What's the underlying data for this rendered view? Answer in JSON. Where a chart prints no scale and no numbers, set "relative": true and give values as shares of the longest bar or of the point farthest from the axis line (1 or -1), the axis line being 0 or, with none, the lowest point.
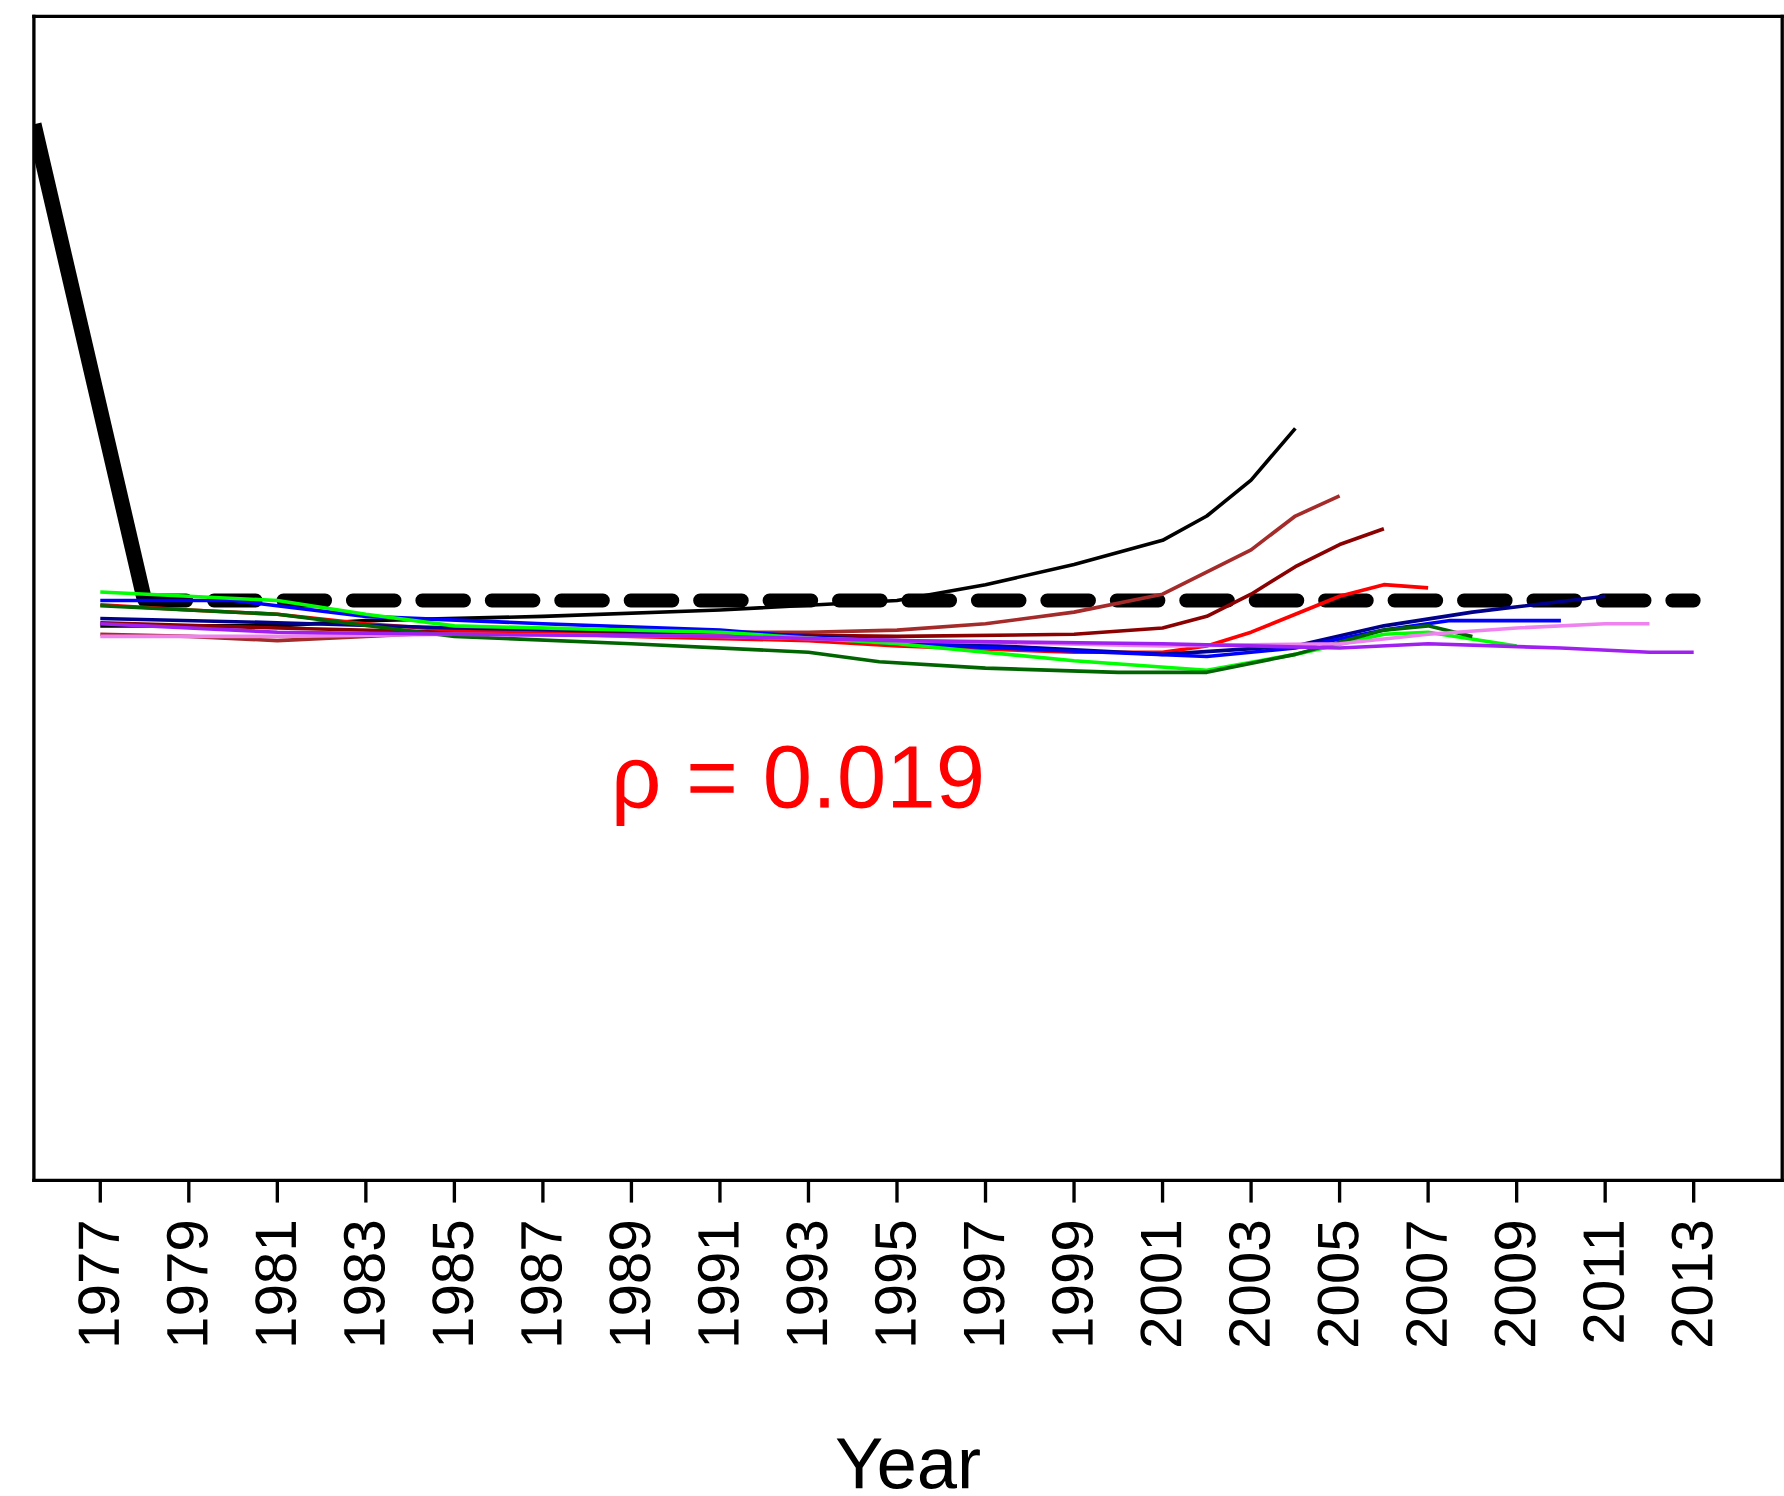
{
  "chart_data": {
    "type": "line",
    "xlabel": "Year",
    "relative": true,
    "xlim": [
      1975.5,
      2015
    ],
    "xticks": [
      1977,
      1979,
      1981,
      1983,
      1985,
      1987,
      1989,
      1991,
      1993,
      1995,
      1997,
      1999,
      2001,
      2003,
      2005,
      2007,
      2009,
      2011,
      2013
    ],
    "annotations": [
      "ρ = 0.019"
    ],
    "grid": false,
    "legend": false,
    "marker": "none",
    "series": [
      {
        "color": "#000000",
        "x": [
          1975.5,
          1978
        ],
        "values": [
          1.0,
          0.549
        ]
      },
      {
        "color": "#000000",
        "line_style": "dashed",
        "x": [
          1978,
          2013
        ],
        "values": [
          0.549,
          0.549
        ]
      },
      {
        "color": "#000000",
        "x": [
          1977,
          1981,
          1983,
          1987,
          1991,
          1995,
          1997,
          1999,
          2001,
          2002,
          2003,
          2004
        ],
        "values": [
          0.525,
          0.525,
          0.53,
          0.534,
          0.54,
          0.549,
          0.564,
          0.583,
          0.606,
          0.629,
          0.663,
          0.712
        ]
      },
      {
        "color": "#a52a2a",
        "x": [
          1977,
          1979,
          1981,
          1983,
          1985,
          1989,
          1993,
          1995,
          1997,
          1999,
          2001,
          2003,
          2004,
          2005
        ],
        "values": [
          0.517,
          0.515,
          0.511,
          0.515,
          0.519,
          0.519,
          0.519,
          0.521,
          0.527,
          0.538,
          0.555,
          0.597,
          0.629,
          0.648
        ]
      },
      {
        "color": "#8b0000",
        "x": [
          1977,
          1981,
          1985,
          1991,
          1995,
          1999,
          2001,
          2002,
          2003,
          2004,
          2005,
          2006
        ],
        "values": [
          0.528,
          0.523,
          0.519,
          0.517,
          0.515,
          0.517,
          0.523,
          0.534,
          0.555,
          0.581,
          0.602,
          0.617
        ]
      },
      {
        "color": "#ff0000",
        "x": [
          1977,
          1979,
          1981,
          1983,
          1985,
          1989,
          1993,
          1995,
          1999,
          2001,
          2002,
          2003,
          2004,
          2005,
          2006,
          2007
        ],
        "values": [
          0.545,
          0.54,
          0.536,
          0.527,
          0.521,
          0.515,
          0.511,
          0.506,
          0.5,
          0.5,
          0.506,
          0.519,
          0.536,
          0.553,
          0.564,
          0.561
        ]
      },
      {
        "color": "#00008b",
        "x": [
          1977,
          1981,
          1985,
          1991,
          1995,
          2001,
          2004,
          2006,
          2008,
          2011
        ],
        "values": [
          0.532,
          0.528,
          0.523,
          0.519,
          0.511,
          0.498,
          0.506,
          0.525,
          0.538,
          0.553
        ]
      },
      {
        "color": "#0000ff",
        "x": [
          1977,
          1980,
          1983,
          1987,
          1991,
          1995,
          2002,
          2004,
          2006,
          2007.5,
          2010
        ],
        "values": [
          0.549,
          0.549,
          0.534,
          0.527,
          0.521,
          0.508,
          0.496,
          0.504,
          0.521,
          0.53,
          0.53
        ]
      },
      {
        "color": "#00ff00",
        "x": [
          1977,
          1981,
          1983,
          1985,
          1991,
          1995,
          1999,
          2002,
          2004,
          2006,
          2007,
          2009
        ],
        "values": [
          0.557,
          0.549,
          0.536,
          0.525,
          0.519,
          0.508,
          0.492,
          0.483,
          0.498,
          0.517,
          0.519,
          0.506
        ]
      },
      {
        "color": "#006400",
        "x": [
          1977,
          1981,
          1985,
          1989,
          1993,
          1994.6,
          1997,
          2000,
          2002,
          2004,
          2006,
          2007,
          2008
        ],
        "values": [
          0.544,
          0.536,
          0.515,
          0.508,
          0.5,
          0.491,
          0.485,
          0.481,
          0.481,
          0.498,
          0.521,
          0.525,
          0.515
        ]
      },
      {
        "color": "#ee82ee",
        "x": [
          1977,
          1981,
          1985,
          1991,
          1995,
          2001,
          2005,
          2007,
          2009,
          2011,
          2012
        ],
        "values": [
          0.515,
          0.515,
          0.517,
          0.515,
          0.511,
          0.506,
          0.508,
          0.517,
          0.523,
          0.527,
          0.527
        ]
      },
      {
        "color": "#a020f0",
        "x": [
          1977,
          1981,
          1985,
          1991,
          1995,
          2001,
          2005,
          2007,
          2010,
          2012,
          2013
        ],
        "values": [
          0.527,
          0.519,
          0.517,
          0.515,
          0.511,
          0.508,
          0.504,
          0.508,
          0.504,
          0.5,
          0.5
        ]
      }
    ]
  }
}
